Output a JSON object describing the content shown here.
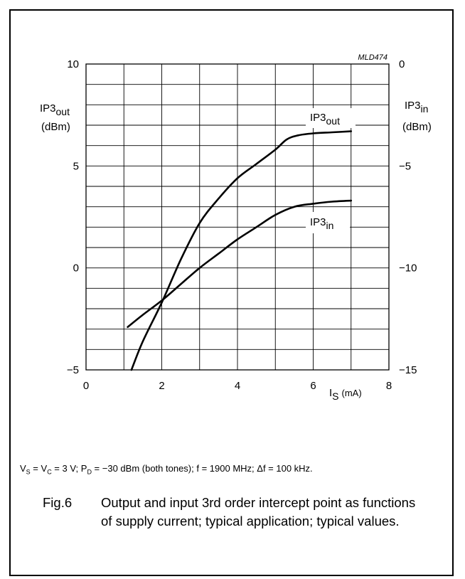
{
  "chart_data": {
    "type": "line",
    "code": "MLD474",
    "xlabel": {
      "main": "I",
      "sub": "S",
      "unit": "(mA)"
    },
    "ylabel_left": {
      "main": "IP3",
      "sub": "out",
      "unit": "(dBm)"
    },
    "ylabel_right": {
      "main": "IP3",
      "sub": "in",
      "unit": "(dBm)"
    },
    "xlim": [
      0,
      8
    ],
    "ylim_left": [
      -5,
      10
    ],
    "ylim_right": [
      -15,
      0
    ],
    "x_ticks": [
      "0",
      "2",
      "4",
      "6",
      "8"
    ],
    "y_left_ticks": [
      "10",
      "5",
      "0",
      "−5"
    ],
    "y_right_ticks": [
      "0",
      "−5",
      "−10",
      "−15"
    ],
    "grid": true,
    "series": [
      {
        "name": "IP3out",
        "label": {
          "main": "IP3",
          "sub": "out"
        },
        "axis": "left",
        "x": [
          1.2,
          1.5,
          2.0,
          2.5,
          3.0,
          3.5,
          4.0,
          4.5,
          5.0,
          5.3,
          5.6,
          6.0,
          6.5,
          7.0
        ],
        "y": [
          -5.0,
          -3.6,
          -1.7,
          0.4,
          2.2,
          3.4,
          4.4,
          5.1,
          5.8,
          6.3,
          6.5,
          6.6,
          6.65,
          6.7
        ]
      },
      {
        "name": "IP3in",
        "label": {
          "main": "IP3",
          "sub": "in"
        },
        "axis": "right",
        "x": [
          1.1,
          1.5,
          2.0,
          2.5,
          3.0,
          3.5,
          4.0,
          4.5,
          5.0,
          5.5,
          6.0,
          6.5,
          7.0
        ],
        "y": [
          -12.9,
          -12.3,
          -11.6,
          -10.8,
          -10.0,
          -9.3,
          -8.6,
          -8.0,
          -7.4,
          -7.0,
          -6.85,
          -6.75,
          -6.7
        ]
      }
    ]
  },
  "conditions": {
    "t1": "V",
    "s1": "S",
    "t2": " = V",
    "s2": "C",
    "t3": " = 3 V; P",
    "s3": "D",
    "t4": " = −30 dBm (both tones); f = 1900 MHz; Δf = 100 kHz."
  },
  "caption": {
    "label": "Fig.6",
    "text": "Output and input 3rd order intercept point as functions of supply current; typical application; typical values."
  }
}
